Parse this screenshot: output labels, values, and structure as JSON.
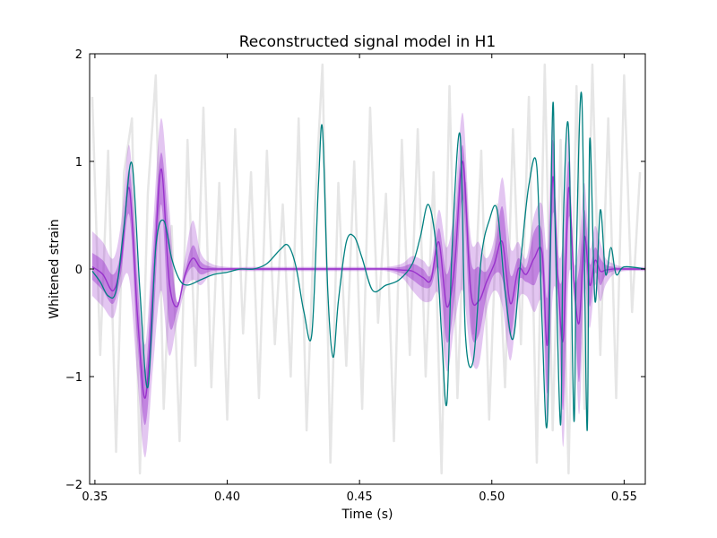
{
  "chart_data": {
    "type": "line",
    "title": "Reconstructed signal model in H1",
    "xlabel": "Time (s)",
    "ylabel": "Whitened strain",
    "xlim": [
      0.348,
      0.558
    ],
    "ylim": [
      -2,
      2
    ],
    "x_ticks": [
      0.35,
      0.4,
      0.45,
      0.5,
      0.55
    ],
    "x_tick_labels": [
      "0.35",
      "0.40",
      "0.45",
      "0.50",
      "0.55"
    ],
    "y_ticks": [
      -2,
      -1,
      0,
      1,
      2
    ],
    "y_tick_labels": [
      "−2",
      "−1",
      "0",
      "1",
      "2"
    ],
    "grid": false,
    "legend": "none",
    "colors": {
      "data": "#e6e6e6",
      "median": "#9932cc",
      "band_50": "#9932cc",
      "band_90": "#9932cc",
      "teal": "#008080"
    },
    "series": [
      {
        "style": "noisy-data",
        "x": [
          0.349,
          0.352,
          0.355,
          0.358,
          0.361,
          0.364,
          0.367,
          0.37,
          0.373,
          0.376,
          0.379,
          0.382,
          0.385,
          0.388,
          0.391,
          0.394,
          0.397,
          0.4,
          0.403,
          0.406,
          0.409,
          0.412,
          0.415,
          0.418,
          0.421,
          0.424,
          0.427,
          0.43,
          0.433,
          0.436,
          0.439,
          0.442,
          0.445,
          0.448,
          0.451,
          0.454,
          0.457,
          0.46,
          0.463,
          0.466,
          0.469,
          0.472,
          0.475,
          0.478,
          0.481,
          0.484,
          0.487,
          0.49,
          0.493,
          0.496,
          0.499,
          0.502,
          0.505,
          0.508,
          0.511,
          0.514,
          0.517,
          0.52,
          0.523,
          0.526,
          0.529,
          0.532,
          0.535,
          0.538,
          0.541,
          0.544,
          0.547,
          0.55,
          0.553,
          0.556
        ],
        "y": [
          1.6,
          -0.8,
          1.1,
          -1.7,
          0.9,
          1.4,
          -1.9,
          0.7,
          1.8,
          -1.3,
          0.4,
          -1.6,
          1.2,
          -0.9,
          1.5,
          -1.1,
          0.8,
          -1.4,
          1.3,
          -0.6,
          0.9,
          -1.2,
          1.1,
          -0.7,
          0.6,
          -1.0,
          1.4,
          -1.5,
          0.5,
          1.9,
          -1.8,
          0.8,
          -0.9,
          1.0,
          -1.3,
          1.5,
          -0.5,
          0.7,
          -1.6,
          1.2,
          -0.8,
          1.3,
          -1.0,
          0.9,
          -1.9,
          1.7,
          -1.2,
          0.8,
          -0.6,
          1.1,
          -1.4,
          0.6,
          -1.1,
          1.3,
          -0.7,
          1.6,
          -1.8,
          1.9,
          -1.5,
          1.2,
          -1.9,
          1.7,
          -1.3,
          1.9,
          -0.8,
          1.4,
          -1.2,
          1.8,
          -0.4,
          0.9
        ]
      },
      {
        "style": "band-90",
        "x": [
          0.349,
          0.353,
          0.357,
          0.36,
          0.363,
          0.366,
          0.369,
          0.372,
          0.375,
          0.378,
          0.381,
          0.384,
          0.387,
          0.39,
          0.394,
          0.4,
          0.41,
          0.42,
          0.43,
          0.44,
          0.45,
          0.46,
          0.466,
          0.47,
          0.474,
          0.477,
          0.48,
          0.483,
          0.486,
          0.489,
          0.492,
          0.495,
          0.498,
          0.501,
          0.504,
          0.507,
          0.51,
          0.513,
          0.516,
          0.519,
          0.521,
          0.523,
          0.525,
          0.527,
          0.529,
          0.531,
          0.533,
          0.535,
          0.537,
          0.539,
          0.541,
          0.543,
          0.546,
          0.55,
          0.558
        ],
        "y_upper": [
          0.35,
          0.25,
          0.1,
          0.45,
          1.15,
          0.1,
          -0.7,
          0.4,
          1.4,
          0.6,
          -0.3,
          0.1,
          0.45,
          0.15,
          0.05,
          0.02,
          0.02,
          0.02,
          0.02,
          0.02,
          0.02,
          0.02,
          0.05,
          0.12,
          0.08,
          0.05,
          0.55,
          0.2,
          0.6,
          1.45,
          0.3,
          0.25,
          0.1,
          0.3,
          0.85,
          0.2,
          0.25,
          0.1,
          0.5,
          0.6,
          0.2,
          1.45,
          0.2,
          0.3,
          1.3,
          0.1,
          0.25,
          0.8,
          0.2,
          0.4,
          0.25,
          0.1,
          0.05,
          0.02,
          0.02
        ],
        "y_lower": [
          -0.25,
          -0.35,
          -0.45,
          -0.15,
          -0.1,
          -1.0,
          -1.75,
          -0.9,
          -0.2,
          -0.8,
          -0.5,
          -0.2,
          -0.1,
          -0.15,
          -0.05,
          -0.02,
          -0.02,
          -0.02,
          -0.02,
          -0.02,
          -0.02,
          -0.02,
          -0.08,
          -0.2,
          -0.3,
          -0.3,
          -0.25,
          -0.95,
          -0.5,
          -0.2,
          -0.8,
          -0.9,
          -0.4,
          -0.2,
          -0.35,
          -0.85,
          -0.3,
          -0.25,
          -0.4,
          -0.35,
          -1.45,
          -0.25,
          -0.4,
          -1.65,
          -0.1,
          -0.3,
          -1.35,
          -0.2,
          -0.55,
          -0.15,
          -0.3,
          -0.15,
          -0.05,
          -0.02,
          -0.02
        ]
      },
      {
        "style": "band-50",
        "x": [
          0.349,
          0.353,
          0.357,
          0.36,
          0.363,
          0.366,
          0.369,
          0.372,
          0.375,
          0.378,
          0.381,
          0.384,
          0.387,
          0.39,
          0.394,
          0.4,
          0.41,
          0.42,
          0.43,
          0.44,
          0.45,
          0.46,
          0.466,
          0.47,
          0.474,
          0.477,
          0.48,
          0.483,
          0.486,
          0.489,
          0.492,
          0.495,
          0.498,
          0.501,
          0.504,
          0.507,
          0.51,
          0.513,
          0.516,
          0.519,
          0.521,
          0.523,
          0.525,
          0.527,
          0.529,
          0.531,
          0.533,
          0.535,
          0.537,
          0.539,
          0.541,
          0.543,
          0.546,
          0.55,
          0.558
        ],
        "y_upper": [
          0.15,
          0.08,
          -0.05,
          0.2,
          0.92,
          -0.1,
          -0.95,
          0.15,
          1.08,
          0.35,
          -0.3,
          -0.02,
          0.22,
          0.07,
          0.02,
          0.01,
          0.01,
          0.01,
          0.01,
          0.01,
          0.01,
          0.01,
          0.02,
          0.05,
          0.0,
          -0.05,
          0.38,
          -0.05,
          0.38,
          1.15,
          0.1,
          0.02,
          -0.02,
          0.18,
          0.58,
          -0.05,
          0.1,
          0.02,
          0.35,
          0.35,
          -0.25,
          1.2,
          0.0,
          0.0,
          1.0,
          -0.05,
          0.0,
          0.55,
          0.05,
          0.2,
          0.1,
          0.04,
          0.02,
          0.01,
          0.01
        ],
        "y_lower": [
          -0.1,
          -0.2,
          -0.32,
          -0.02,
          0.5,
          -0.65,
          -1.45,
          -0.55,
          0.6,
          -0.5,
          -0.4,
          -0.1,
          0.02,
          -0.05,
          -0.02,
          -0.01,
          -0.01,
          -0.01,
          -0.01,
          -0.01,
          -0.01,
          -0.01,
          -0.04,
          -0.1,
          -0.17,
          -0.16,
          0.0,
          -0.68,
          -0.25,
          0.65,
          -0.55,
          -0.62,
          -0.25,
          -0.05,
          -0.1,
          -0.62,
          -0.12,
          -0.12,
          -0.15,
          -0.08,
          -1.15,
          0.5,
          -0.2,
          -1.3,
          0.45,
          -0.15,
          -1.05,
          0.05,
          -0.35,
          -0.04,
          -0.15,
          -0.06,
          -0.02,
          -0.01,
          -0.01
        ]
      },
      {
        "style": "median",
        "x": [
          0.349,
          0.353,
          0.357,
          0.36,
          0.363,
          0.366,
          0.369,
          0.372,
          0.375,
          0.378,
          0.381,
          0.384,
          0.387,
          0.39,
          0.394,
          0.4,
          0.41,
          0.42,
          0.43,
          0.44,
          0.45,
          0.46,
          0.466,
          0.47,
          0.474,
          0.477,
          0.48,
          0.483,
          0.486,
          0.489,
          0.492,
          0.495,
          0.498,
          0.501,
          0.504,
          0.507,
          0.51,
          0.513,
          0.516,
          0.519,
          0.521,
          0.523,
          0.525,
          0.527,
          0.529,
          0.531,
          0.533,
          0.535,
          0.537,
          0.539,
          0.541,
          0.543,
          0.546,
          0.55,
          0.558
        ],
        "y": [
          0.02,
          -0.05,
          -0.2,
          0.1,
          0.75,
          -0.4,
          -1.2,
          -0.2,
          0.93,
          -0.1,
          -0.35,
          -0.06,
          0.1,
          0.01,
          0.0,
          0.0,
          0.0,
          0.0,
          0.0,
          0.0,
          0.0,
          0.0,
          -0.01,
          -0.02,
          -0.08,
          -0.1,
          0.25,
          -0.35,
          0.05,
          1.0,
          -0.2,
          -0.3,
          -0.12,
          0.05,
          0.25,
          -0.32,
          0.0,
          -0.05,
          0.1,
          0.15,
          -0.7,
          0.85,
          -0.1,
          -0.65,
          0.75,
          -0.1,
          -0.5,
          0.3,
          -0.15,
          0.08,
          -0.02,
          -0.01,
          0.0,
          0.0,
          0.0
        ]
      },
      {
        "style": "teal-model",
        "x": [
          0.349,
          0.352,
          0.355,
          0.358,
          0.361,
          0.364,
          0.367,
          0.37,
          0.373,
          0.376,
          0.379,
          0.382,
          0.385,
          0.39,
          0.395,
          0.4,
          0.405,
          0.41,
          0.415,
          0.42,
          0.423,
          0.426,
          0.429,
          0.432,
          0.4345,
          0.436,
          0.438,
          0.44,
          0.442,
          0.445,
          0.448,
          0.451,
          0.455,
          0.46,
          0.465,
          0.47,
          0.473,
          0.476,
          0.479,
          0.481,
          0.483,
          0.485,
          0.488,
          0.49,
          0.493,
          0.496,
          0.499,
          0.502,
          0.505,
          0.508,
          0.511,
          0.514,
          0.517,
          0.519,
          0.521,
          0.523,
          0.524,
          0.526,
          0.527,
          0.529,
          0.531,
          0.532,
          0.534,
          0.536,
          0.537,
          0.539,
          0.541,
          0.543,
          0.545,
          0.547,
          0.55,
          0.558
        ],
        "y": [
          -0.02,
          -0.12,
          -0.25,
          -0.2,
          0.4,
          0.98,
          -0.2,
          -1.1,
          0.2,
          0.45,
          0.1,
          -0.1,
          -0.15,
          -0.1,
          -0.05,
          -0.03,
          0.0,
          0.0,
          0.05,
          0.18,
          0.22,
          0.02,
          -0.4,
          -0.6,
          0.8,
          1.3,
          -0.2,
          -0.82,
          -0.3,
          0.25,
          0.3,
          0.1,
          -0.2,
          -0.15,
          -0.1,
          0.05,
          0.3,
          0.6,
          0.2,
          -0.6,
          -1.25,
          0.2,
          1.25,
          -0.6,
          -0.85,
          0.1,
          0.45,
          0.55,
          -0.2,
          -0.65,
          0.1,
          0.78,
          0.95,
          -0.5,
          -1.4,
          1.5,
          0.3,
          -1.45,
          0.4,
          1.3,
          -1.4,
          0.2,
          1.6,
          -1.5,
          1.2,
          -0.3,
          0.55,
          -0.05,
          0.2,
          -0.05,
          0.02,
          0.0
        ]
      }
    ]
  }
}
